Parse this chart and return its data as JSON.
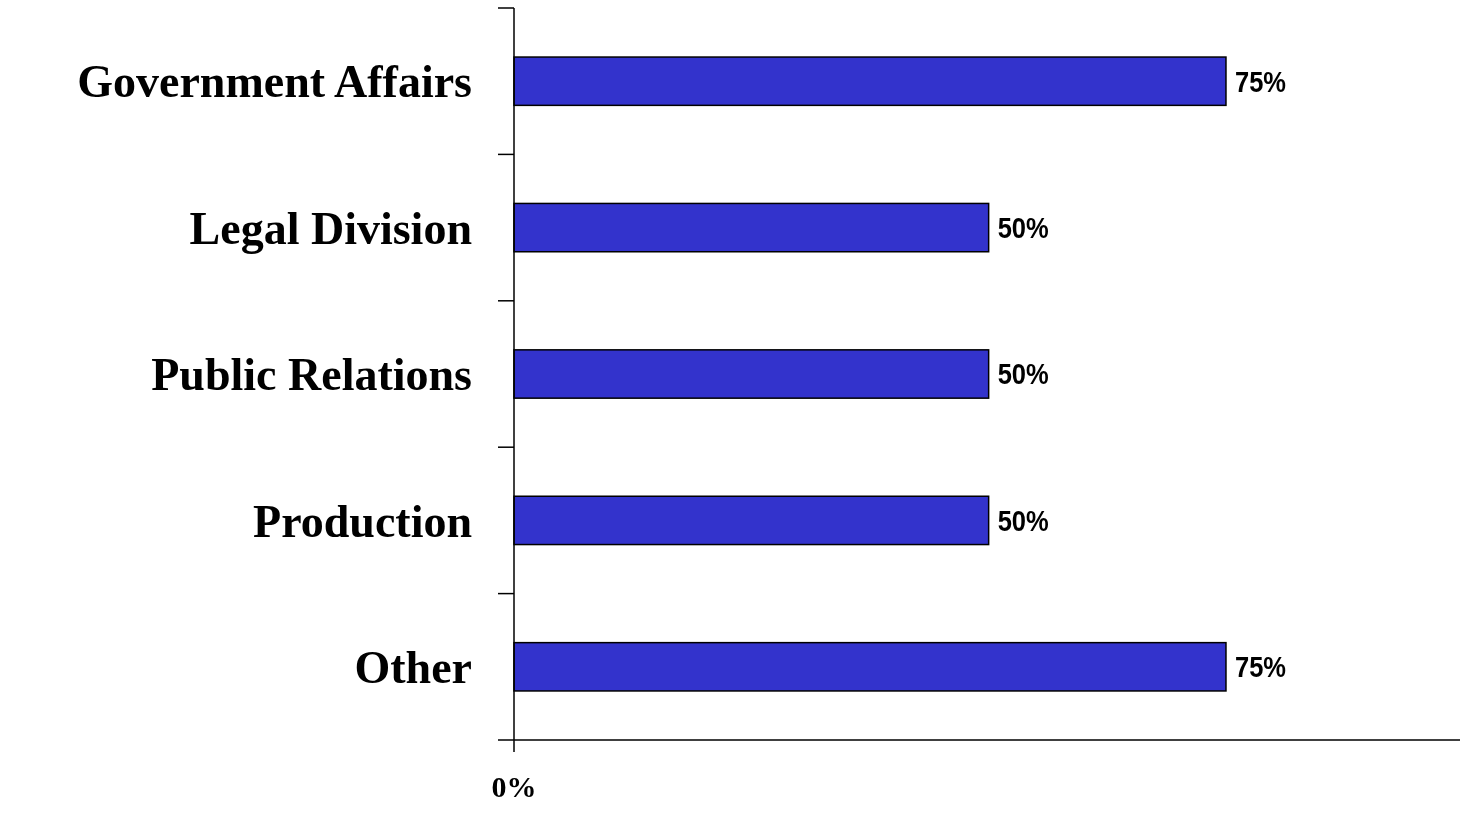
{
  "chart_data": {
    "type": "bar",
    "orientation": "horizontal",
    "categories": [
      "Government Affairs",
      "Legal Division",
      "Public Relations",
      "Production",
      "Other"
    ],
    "values": [
      75,
      50,
      50,
      50,
      75
    ],
    "value_labels": [
      "75%",
      "50%",
      "50%",
      "50%",
      "75%"
    ],
    "color": "#3333cc",
    "annotations": [
      "0%"
    ]
  }
}
